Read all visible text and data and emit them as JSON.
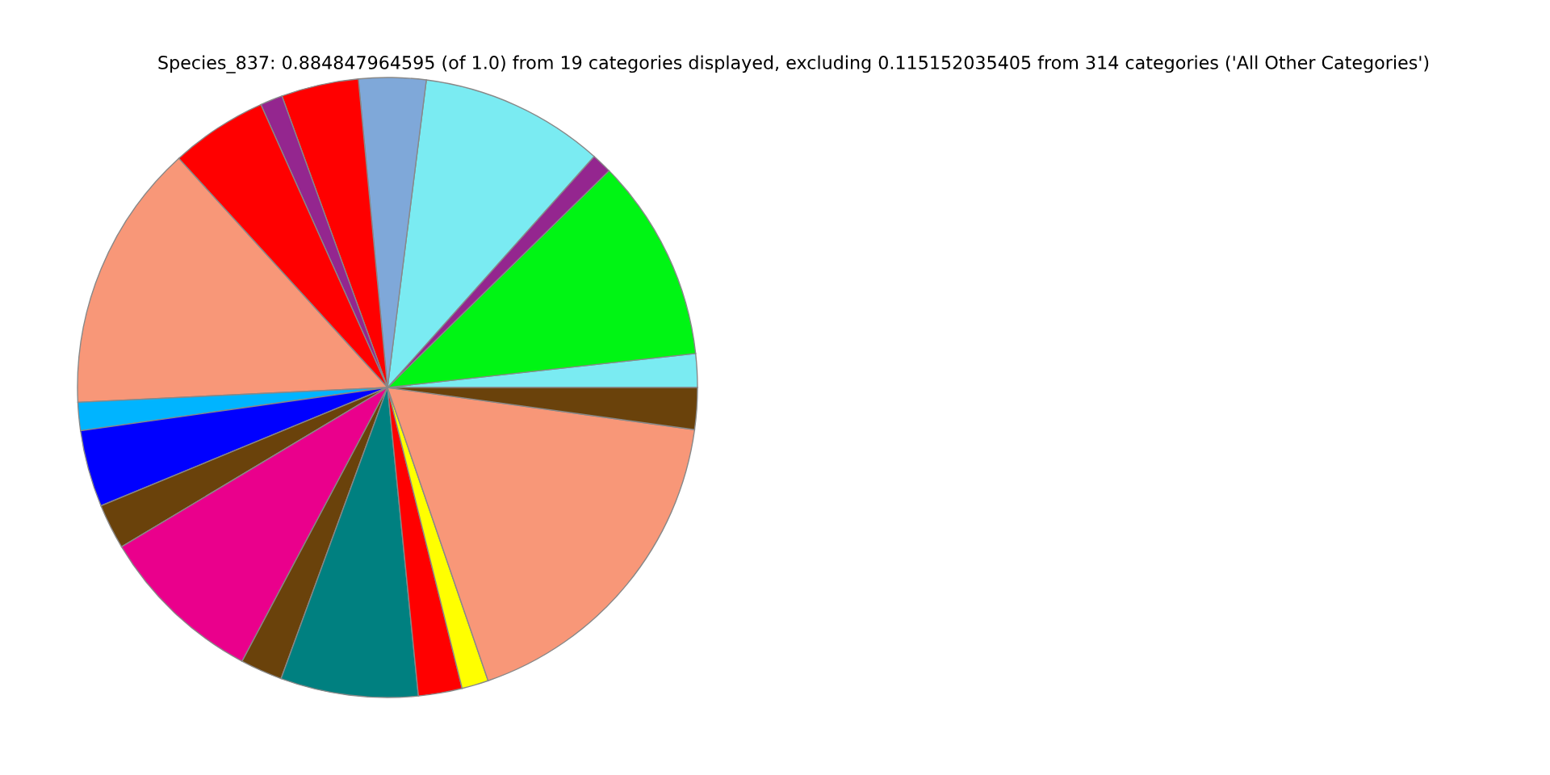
{
  "chart_data": {
    "type": "pie",
    "title": "Species_837: 0.884847964595 (of 1.0) from 19 categories displayed, excluding 0.115152035405 from 314 categories ('All Other Categories')",
    "categories": [
      null,
      null,
      null,
      null,
      null,
      null,
      null,
      null,
      null,
      null,
      null,
      null,
      null,
      null,
      null,
      null,
      null,
      null,
      null
    ],
    "values": [
      1.75,
      10.58,
      1.06,
      9.61,
      3.5,
      4.03,
      1.17,
      5.06,
      14.0,
      1.47,
      4.0,
      2.36,
      8.64,
      2.19,
      7.17,
      2.28,
      1.39,
      17.57,
      2.17
    ],
    "colors": [
      "#7aebf2",
      "#00f514",
      "#94268f",
      "#7aebf2",
      "#7fa8d9",
      "#ff0000",
      "#94268f",
      "#ff0000",
      "#f89778",
      "#00b4ff",
      "#0000ff",
      "#6a420b",
      "#ea008c",
      "#6a420b",
      "#008080",
      "#ff0000",
      "#ffff00",
      "#f89778",
      "#6a420b"
    ]
  }
}
